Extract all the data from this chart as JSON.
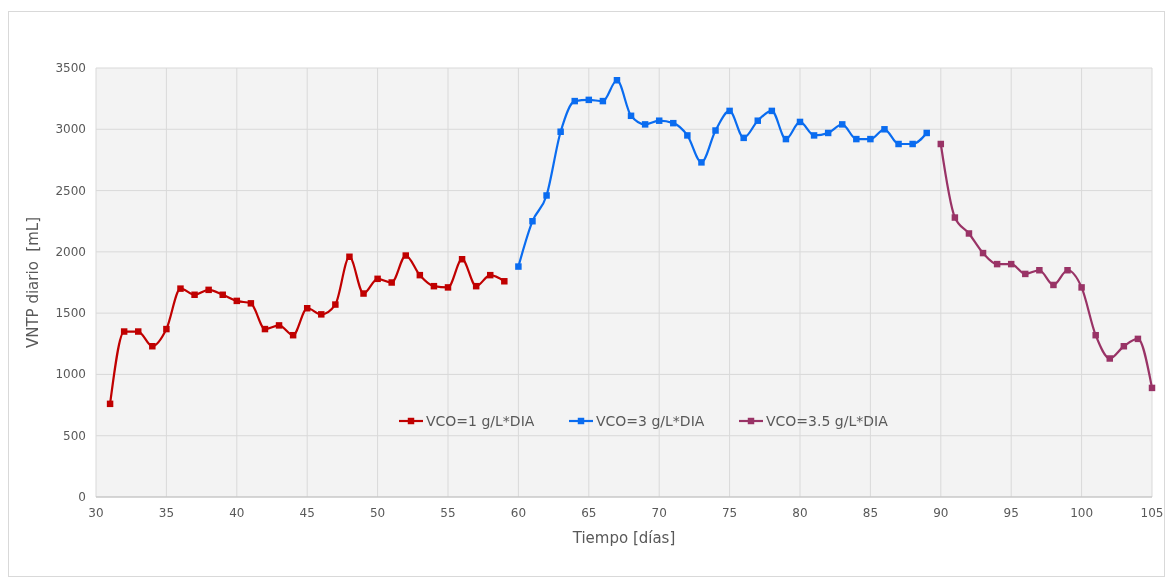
{
  "chart_data": {
    "type": "line",
    "xlabel": "Tiempo [días]",
    "ylabel": "VNTP diario  [mL]",
    "xlim": [
      30,
      105
    ],
    "xticks": [
      30,
      35,
      40,
      45,
      50,
      55,
      60,
      65,
      70,
      75,
      80,
      85,
      90,
      95,
      100,
      105
    ],
    "ylim": [
      0,
      3500
    ],
    "yticks": [
      0,
      500,
      1000,
      1500,
      2000,
      2500,
      3000,
      3500
    ],
    "grid": true,
    "legend": "bottom",
    "marker": "square",
    "line_style": "solid",
    "series": [
      {
        "name": "VCO=1 g/L*DIA",
        "color": "#c00000",
        "x": [
          31,
          32,
          33,
          34,
          35,
          36,
          37,
          38,
          39,
          40,
          41,
          42,
          43,
          44,
          45,
          46,
          47,
          48,
          49,
          50,
          51,
          52,
          53,
          54,
          55,
          56,
          57,
          58,
          59
        ],
        "values": [
          760,
          1350,
          1350,
          1230,
          1370,
          1700,
          1650,
          1690,
          1650,
          1600,
          1580,
          1370,
          1400,
          1320,
          1540,
          1490,
          1570,
          1960,
          1660,
          1780,
          1750,
          1970,
          1810,
          1720,
          1710,
          1940,
          1720,
          1810,
          1760
        ]
      },
      {
        "name": "VCO=3 g/L*DIA",
        "color": "#0a6cf0",
        "x": [
          60,
          61,
          62,
          63,
          64,
          65,
          66,
          67,
          68,
          69,
          70,
          71,
          72,
          73,
          74,
          75,
          76,
          77,
          78,
          79,
          80,
          81,
          82,
          83,
          84,
          85,
          86,
          87,
          88,
          89
        ],
        "values": [
          1880,
          2250,
          2460,
          2980,
          3230,
          3240,
          3230,
          3400,
          3110,
          3040,
          3070,
          3050,
          2950,
          2730,
          2990,
          3150,
          2930,
          3070,
          3150,
          2920,
          3060,
          2950,
          2970,
          3040,
          2920,
          2920,
          3000,
          2880,
          2880,
          2970
        ]
      },
      {
        "name": "VCO=3.5 g/L*DIA",
        "color": "#993366",
        "x": [
          90,
          91,
          92,
          93,
          94,
          95,
          96,
          97,
          98,
          99,
          100,
          101,
          102,
          103,
          104,
          105
        ],
        "values": [
          2880,
          2280,
          2150,
          1990,
          1900,
          1900,
          1820,
          1850,
          1730,
          1850,
          1710,
          1320,
          1130,
          1230,
          1290,
          890
        ]
      }
    ]
  }
}
